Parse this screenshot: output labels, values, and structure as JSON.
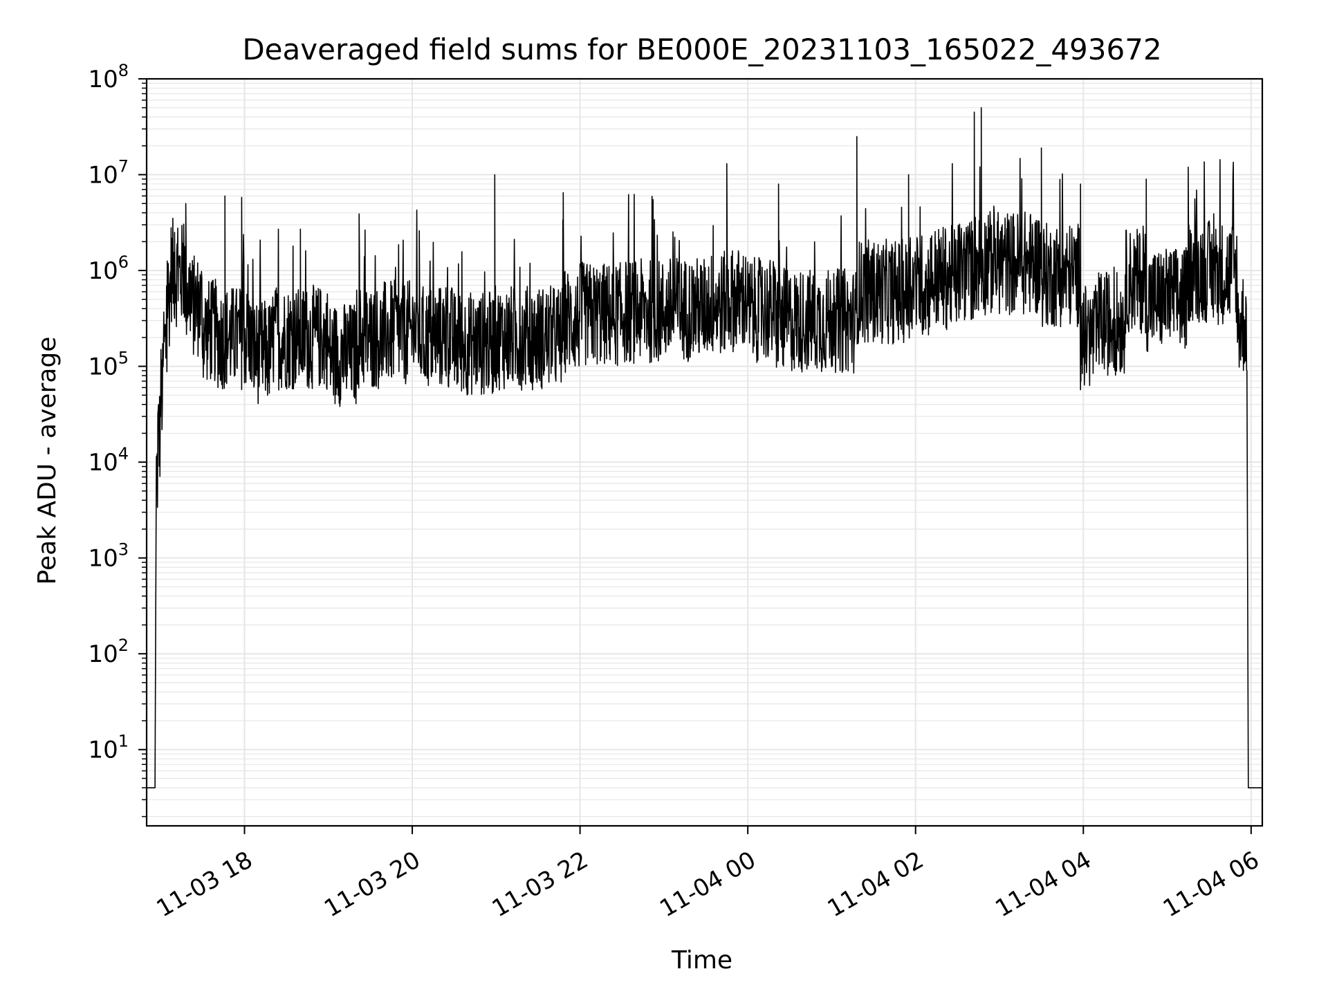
{
  "chart_data": {
    "type": "line",
    "title": "Deaveraged field sums for BE000E_20231103_165022_493672",
    "xlabel": "Time",
    "ylabel": "Peak ADU - average",
    "yscale": "log",
    "ylim": [
      1.6,
      100000000
    ],
    "xlim": [
      "2023-11-03 16:50",
      "2023-11-04 06:08"
    ],
    "x_ticks": [
      {
        "t": "2023-11-03 18:00",
        "label": "11-03 18"
      },
      {
        "t": "2023-11-03 20:00",
        "label": "11-03 20"
      },
      {
        "t": "2023-11-03 22:00",
        "label": "11-03 22"
      },
      {
        "t": "2023-11-04 00:00",
        "label": "11-04 00"
      },
      {
        "t": "2023-11-04 02:00",
        "label": "11-04 02"
      },
      {
        "t": "2023-11-04 04:00",
        "label": "11-04 04"
      },
      {
        "t": "2023-11-04 06:00",
        "label": "11-04 06"
      }
    ],
    "y_ticks": [
      {
        "value": 10,
        "base": "10",
        "exp": "1"
      },
      {
        "value": 100,
        "base": "10",
        "exp": "2"
      },
      {
        "value": 1000,
        "base": "10",
        "exp": "3"
      },
      {
        "value": 10000,
        "base": "10",
        "exp": "4"
      },
      {
        "value": 100000,
        "base": "10",
        "exp": "5"
      },
      {
        "value": 1000000,
        "base": "10",
        "exp": "6"
      },
      {
        "value": 10000000,
        "base": "10",
        "exp": "7"
      },
      {
        "value": 100000000,
        "base": "10",
        "exp": "8"
      }
    ],
    "grid": true,
    "line_color": "#000000",
    "grid_color": "#e6e6e6",
    "series": [
      {
        "points": [
          [
            "2023-11-03 16:50",
            4
          ],
          [
            "2023-11-03 16:56",
            4
          ],
          [
            "2023-11-03 16:57",
            5000
          ],
          [
            "2023-11-03 16:58",
            12000
          ],
          [
            "2023-11-03 17:00",
            30000
          ],
          [
            "2023-11-03 17:02",
            90000
          ],
          [
            "2023-11-03 17:05",
            300000
          ],
          [
            "2023-11-03 17:07",
            1000000
          ],
          [
            "2023-11-03 17:10",
            2500000
          ],
          [
            "2023-11-03 17:14",
            900000
          ],
          [
            "2023-11-03 17:18",
            5000000
          ],
          [
            "2023-11-03 17:22",
            600000
          ],
          [
            "2023-11-03 17:30",
            300000
          ],
          [
            "2023-11-03 17:40",
            180000
          ],
          [
            "2023-11-03 17:46",
            6000000
          ],
          [
            "2023-11-03 17:50",
            120000
          ],
          [
            "2023-11-03 17:58",
            5800000
          ],
          [
            "2023-11-03 18:05",
            100000
          ],
          [
            "2023-11-03 18:20",
            200000
          ],
          [
            "2023-11-03 18:40",
            2700000
          ],
          [
            "2023-11-03 19:00",
            150000
          ],
          [
            "2023-11-03 19:20",
            120000
          ],
          [
            "2023-11-03 19:22",
            3900000
          ],
          [
            "2023-11-03 19:40",
            200000
          ],
          [
            "2023-11-03 20:00",
            250000
          ],
          [
            "2023-11-03 20:05",
            2600000
          ],
          [
            "2023-11-03 20:30",
            200000
          ],
          [
            "2023-11-03 20:58",
            150000
          ],
          [
            "2023-11-03 20:59",
            10000000
          ],
          [
            "2023-11-03 21:20",
            120000
          ],
          [
            "2023-11-03 21:48",
            6500000
          ],
          [
            "2023-11-03 22:00",
            300000
          ],
          [
            "2023-11-03 22:30",
            400000
          ],
          [
            "2023-11-03 23:00",
            350000
          ],
          [
            "2023-11-03 23:30",
            450000
          ],
          [
            "2023-11-03 23:45",
            13000000
          ],
          [
            "2023-11-04 00:00",
            500000
          ],
          [
            "2023-11-04 00:20",
            300000
          ],
          [
            "2023-11-04 00:22",
            8000000
          ],
          [
            "2023-11-04 00:50",
            300000
          ],
          [
            "2023-11-04 01:18",
            25000000
          ],
          [
            "2023-11-04 01:30",
            600000
          ],
          [
            "2023-11-04 01:55",
            10000000
          ],
          [
            "2023-11-04 02:10",
            700000
          ],
          [
            "2023-11-04 02:30",
            1000000
          ],
          [
            "2023-11-04 02:42",
            45000000
          ],
          [
            "2023-11-04 02:47",
            50000000
          ],
          [
            "2023-11-04 03:00",
            1500000
          ],
          [
            "2023-11-04 03:30",
            19000000
          ],
          [
            "2023-11-04 03:45",
            900000
          ],
          [
            "2023-11-04 03:58",
            8000000
          ],
          [
            "2023-11-04 04:10",
            200000
          ],
          [
            "2023-11-04 04:30",
            400000
          ],
          [
            "2023-11-04 04:45",
            1500000
          ],
          [
            "2023-11-04 04:45",
            9000000
          ],
          [
            "2023-11-04 05:00",
            500000
          ],
          [
            "2023-11-04 05:15",
            12000000
          ],
          [
            "2023-11-04 05:30",
            1000000
          ],
          [
            "2023-11-04 05:50",
            900000
          ],
          [
            "2023-11-04 05:57",
            90000
          ],
          [
            "2023-11-04 05:58",
            4
          ],
          [
            "2023-11-04 06:08",
            4
          ]
        ]
      }
    ]
  }
}
